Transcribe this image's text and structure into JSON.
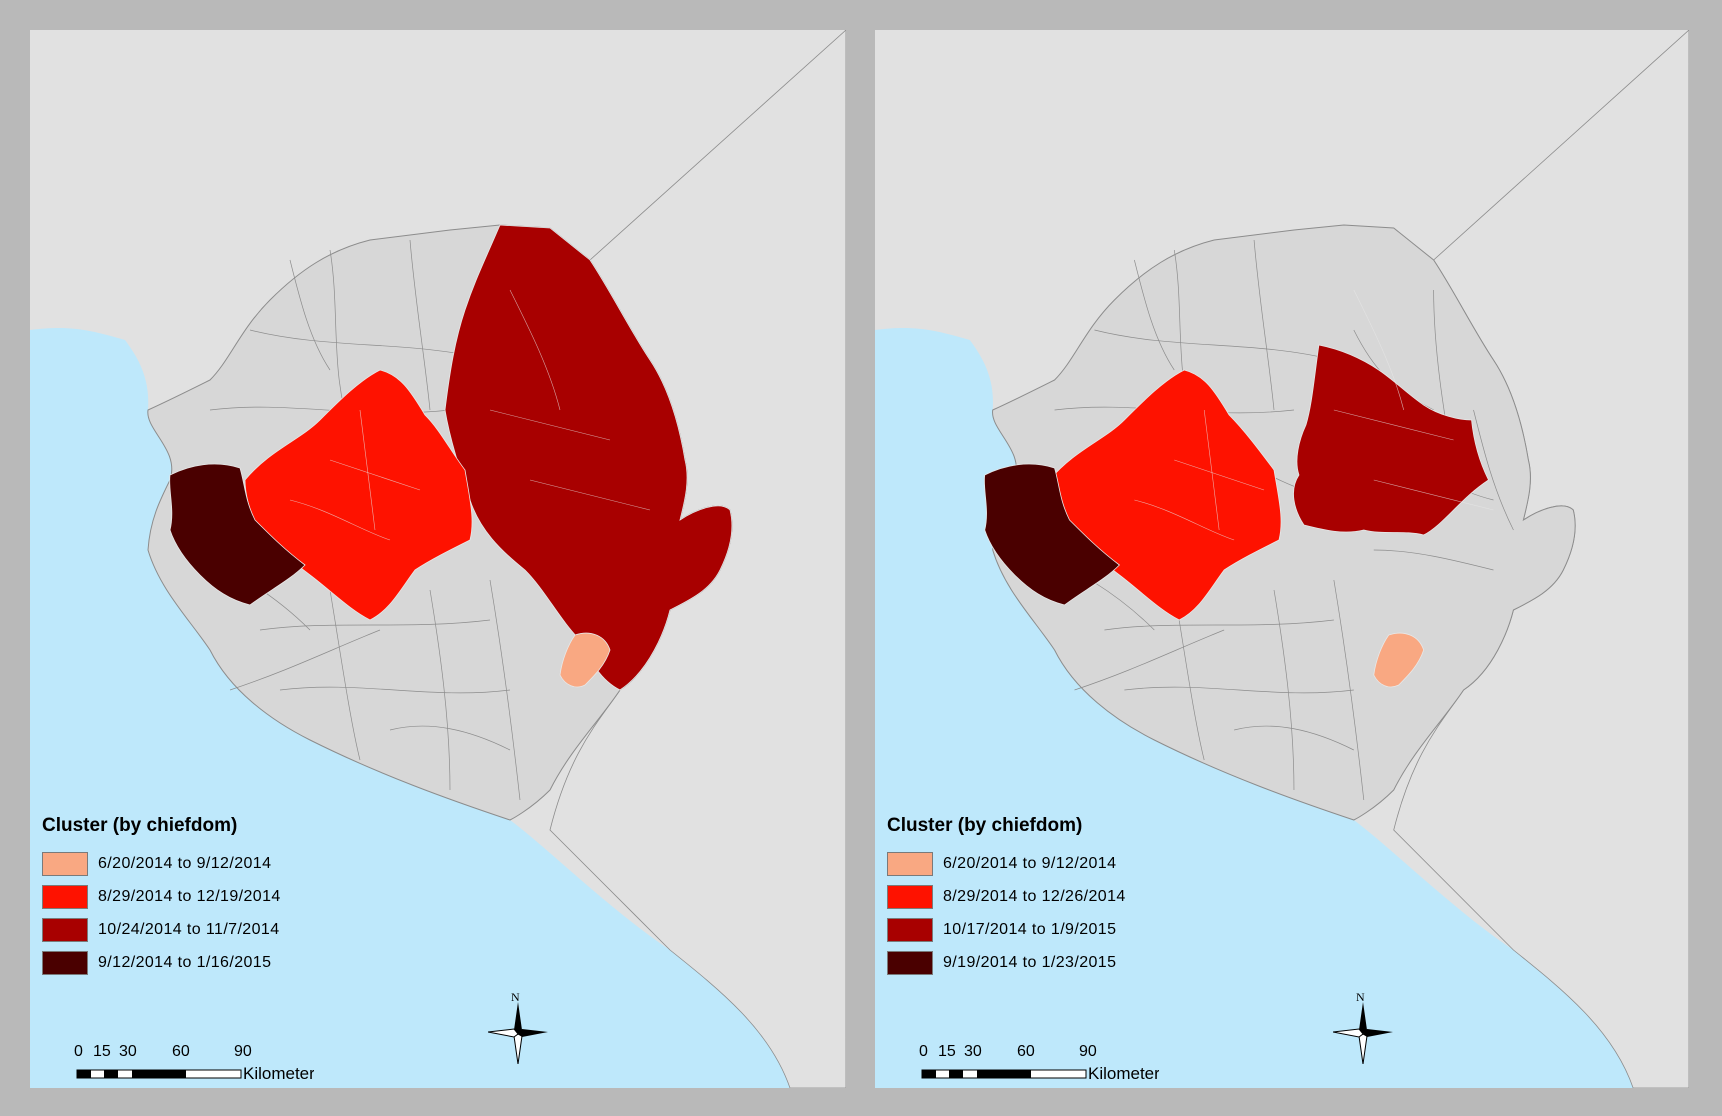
{
  "colors": {
    "frame": "#b9b9b9",
    "panel_bg": "#e1e1e1",
    "sea": "#bee8fb",
    "land": "#d7d7d7",
    "boundary": "#8c8c8c",
    "cluster_1": "#f9a882",
    "cluster_2": "#fe1200",
    "cluster_3": "#a80000",
    "cluster_4": "#4a0000"
  },
  "maps": [
    {
      "legend": {
        "title": "Cluster (by chiefdom)",
        "items": [
          {
            "label": "6/20/2014 to 9/12/2014",
            "color": "#f9a882"
          },
          {
            "label": "8/29/2014 to 12/19/2014",
            "color": "#fe1200"
          },
          {
            "label": "10/24/2014 to 11/7/2014",
            "color": "#a80000"
          },
          {
            "label": "9/12/2014 to 1/16/2015",
            "color": "#4a0000"
          }
        ]
      },
      "scale_bar": {
        "ticks": [
          "0",
          "15",
          "30",
          "60",
          "90"
        ],
        "unit": "Kilometers"
      },
      "north_label": "N"
    },
    {
      "legend": {
        "title": "Cluster (by chiefdom)",
        "items": [
          {
            "label": "6/20/2014 to 9/12/2014",
            "color": "#f9a882"
          },
          {
            "label": "8/29/2014 to 12/26/2014",
            "color": "#fe1200"
          },
          {
            "label": "10/17/2014 to 1/9/2015",
            "color": "#a80000"
          },
          {
            "label": "9/19/2014 to 1/23/2015",
            "color": "#4a0000"
          }
        ]
      },
      "scale_bar": {
        "ticks": [
          "0",
          "15",
          "30",
          "60",
          "90"
        ],
        "unit": "Kilometers"
      },
      "north_label": "N"
    }
  ]
}
